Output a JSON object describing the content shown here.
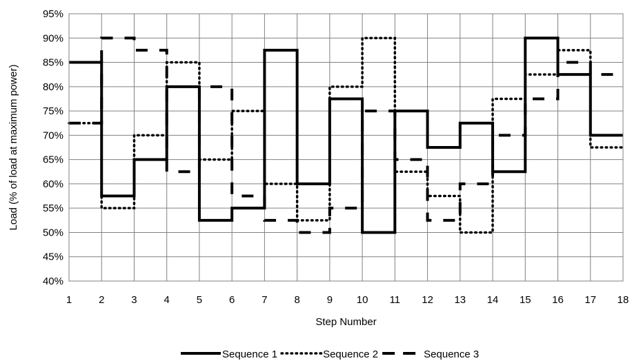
{
  "chart_data": {
    "type": "line",
    "step": true,
    "xlabel": "Step Number",
    "ylabel": "Load (% of load at maximum power)",
    "xlim": [
      1,
      18
    ],
    "ylim": [
      40,
      95
    ],
    "x_ticks": [
      1,
      2,
      3,
      4,
      5,
      6,
      7,
      8,
      9,
      10,
      11,
      12,
      13,
      14,
      15,
      16,
      17,
      18
    ],
    "y_ticks": [
      40,
      45,
      50,
      55,
      60,
      65,
      70,
      75,
      80,
      85,
      90,
      95
    ],
    "y_tick_suffix": "%",
    "grid": true,
    "legend_position": "bottom",
    "series": [
      {
        "name": "Sequence 1",
        "style": "solid",
        "color": "#000000",
        "values": [
          85,
          57.5,
          65,
          80,
          52.5,
          55,
          87.5,
          60,
          77.5,
          50,
          75,
          67.5,
          72.5,
          62.5,
          90,
          82.5,
          70
        ]
      },
      {
        "name": "Sequence 2",
        "style": "dotted",
        "color": "#000000",
        "values": [
          72.5,
          55,
          70,
          85,
          65,
          75,
          60,
          52.5,
          80,
          90,
          62.5,
          57.5,
          50,
          77.5,
          82.5,
          87.5,
          67.5
        ]
      },
      {
        "name": "Sequence 3",
        "style": "dashed",
        "color": "#000000",
        "values": [
          72.5,
          90,
          87.5,
          62.5,
          80,
          57.5,
          52.5,
          50,
          55,
          75,
          65,
          52.5,
          60,
          70,
          77.5,
          85,
          82.5
        ]
      }
    ]
  }
}
